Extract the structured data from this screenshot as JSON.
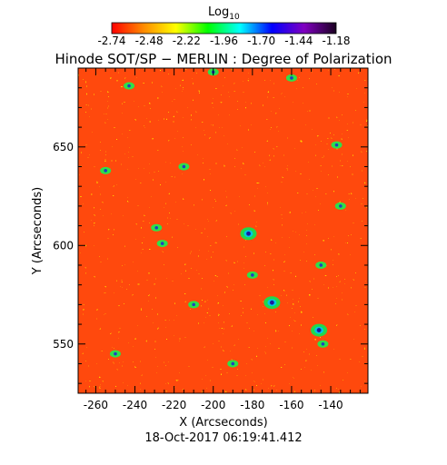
{
  "colorbar": {
    "label": "Log",
    "label_sub": "10",
    "ticks": [
      "-2.74",
      "-2.48",
      "-2.22",
      "-1.96",
      "-1.70",
      "-1.44",
      "-1.18"
    ],
    "tick_values": [
      -2.74,
      -2.48,
      -2.22,
      -1.96,
      -1.7,
      -1.44,
      -1.18
    ],
    "colors": [
      "#ff0000",
      "#ff8c00",
      "#ffff00",
      "#00ff00",
      "#00ffff",
      "#0000ff",
      "#8000c0",
      "#1a0020"
    ]
  },
  "chart_data": {
    "type": "heatmap",
    "title": "Hinode SOT/SP − MERLIN : Degree of Polarization",
    "xlabel": "X (Arcseconds)",
    "ylabel": "Y (Arcseconds)",
    "xlim": [
      -269,
      -121
    ],
    "ylim": [
      525,
      690
    ],
    "xticks": [
      -260,
      -240,
      -220,
      -200,
      -180,
      -160,
      -140
    ],
    "yticks": [
      550,
      600,
      650
    ],
    "value_range": [
      -2.74,
      -1.18
    ],
    "background_color": "#ff4a10",
    "features": [
      {
        "x": -182,
        "y": 606,
        "level": "high"
      },
      {
        "x": -170,
        "y": 571,
        "level": "high"
      },
      {
        "x": -146,
        "y": 557,
        "level": "high"
      },
      {
        "x": -229,
        "y": 609,
        "level": "mid"
      },
      {
        "x": -226,
        "y": 601,
        "level": "mid"
      },
      {
        "x": -255,
        "y": 638,
        "level": "mid"
      },
      {
        "x": -137,
        "y": 651,
        "level": "mid"
      },
      {
        "x": -144,
        "y": 550,
        "level": "mid"
      },
      {
        "x": -243,
        "y": 681,
        "level": "mid"
      },
      {
        "x": -200,
        "y": 688,
        "level": "mid"
      },
      {
        "x": -160,
        "y": 685,
        "level": "mid"
      },
      {
        "x": -145,
        "y": 590,
        "level": "mid"
      },
      {
        "x": -180,
        "y": 585,
        "level": "mid"
      },
      {
        "x": -210,
        "y": 570,
        "level": "mid"
      },
      {
        "x": -250,
        "y": 545,
        "level": "mid"
      },
      {
        "x": -190,
        "y": 540,
        "level": "mid"
      },
      {
        "x": -135,
        "y": 620,
        "level": "mid"
      },
      {
        "x": -215,
        "y": 640,
        "level": "mid"
      }
    ]
  },
  "footer": {
    "timestamp": "18-Oct-2017 06:19:41.412"
  }
}
